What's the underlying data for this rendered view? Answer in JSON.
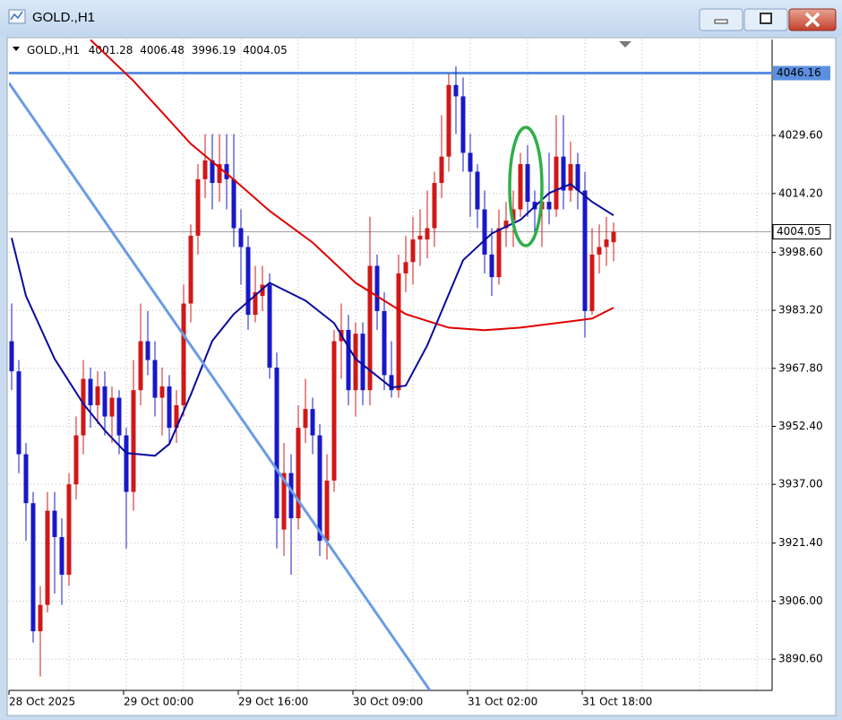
{
  "chart_data": {
    "type": "candlestick",
    "title": "GOLD.,H1",
    "categories": [
      "28 Oct 2025",
      null,
      null,
      null,
      null,
      null,
      null,
      null,
      null,
      null,
      null,
      null,
      null,
      null,
      null,
      null,
      "29 Oct 00:00",
      null,
      null,
      null,
      null,
      null,
      null,
      null,
      null,
      null,
      null,
      null,
      null,
      null,
      null,
      null,
      "29 Oct 16:00",
      null,
      null,
      null,
      null,
      null,
      null,
      null,
      null,
      null,
      null,
      null,
      null,
      null,
      null,
      null,
      "30 Oct 09:00",
      null,
      null,
      null,
      null,
      null,
      null,
      null,
      null,
      null,
      null,
      null,
      null,
      null,
      null,
      null,
      "31 Oct 02:00",
      null,
      null,
      null,
      null,
      null,
      null,
      null,
      null,
      null,
      null,
      null,
      null,
      null,
      null,
      null,
      "31 Oct 18:00",
      null,
      null,
      null,
      null
    ],
    "open": [
      3975,
      3967,
      3945,
      3932,
      3898,
      3905,
      3930,
      3923,
      3913,
      3937,
      3950,
      3965,
      3958,
      3963,
      3955,
      3960,
      3950,
      3935,
      3962,
      3975,
      3970,
      3960,
      3963,
      3952,
      3958,
      3985,
      4003,
      4018,
      4023,
      4017,
      4022,
      4018,
      4005,
      4000,
      3982,
      3987,
      3990,
      3968,
      3925,
      3940,
      3928,
      3952,
      3957,
      3950,
      3922,
      3938,
      3975,
      3978,
      3962,
      3977,
      3962,
      3995,
      3983,
      3966,
      3962,
      3993,
      3996,
      4002,
      4002,
      4005,
      4017,
      4024,
      4043,
      4040,
      4025,
      4020,
      4010,
      3998,
      3992,
      4005,
      4007,
      4010,
      4022,
      4012,
      4010,
      4012,
      4010,
      4024,
      4015,
      4022,
      4015,
      3983,
      3998,
      4000,
      4001.28
    ],
    "high": [
      3985,
      3970,
      3948,
      3935,
      3910,
      3935,
      3935,
      3928,
      3940,
      3955,
      3970,
      3968,
      3967,
      3967,
      3963,
      3962,
      3952,
      3970,
      3985,
      3983,
      3975,
      3968,
      3966,
      3962,
      3990,
      4006,
      4022,
      4030,
      4030,
      4030,
      4030,
      4030,
      4010,
      4003,
      3995,
      3995,
      3993,
      3972,
      3948,
      3945,
      3958,
      3965,
      3960,
      3953,
      3945,
      3978,
      3985,
      3982,
      3980,
      3980,
      4008,
      3998,
      3988,
      3975,
      3998,
      4003,
      4008,
      4010,
      4015,
      4020,
      4035,
      4046,
      4048,
      4045,
      4030,
      4022,
      4015,
      4005,
      4010,
      4012,
      4015,
      4025,
      4027,
      4015,
      4018,
      4025,
      4035,
      4035,
      4028,
      4025,
      4020,
      4005,
      4006,
      4008,
      4006.48
    ],
    "low": [
      3962,
      3940,
      3922,
      3895,
      3886,
      3903,
      3908,
      3905,
      3910,
      3933,
      3945,
      3952,
      3953,
      3950,
      3948,
      3945,
      3920,
      3930,
      3958,
      3966,
      3955,
      3950,
      3948,
      3948,
      3955,
      3980,
      3998,
      4013,
      4010,
      4012,
      4010,
      4000,
      3990,
      3978,
      3980,
      3983,
      3965,
      3920,
      3918,
      3913,
      3925,
      3948,
      3945,
      3918,
      3917,
      3935,
      3965,
      3958,
      3955,
      3958,
      3958,
      3978,
      3962,
      3960,
      3960,
      3988,
      3990,
      3995,
      3997,
      4000,
      4013,
      4020,
      4030,
      4020,
      4008,
      4005,
      3993,
      3987,
      3990,
      4000,
      4000,
      4008,
      4008,
      4003,
      4000,
      4006,
      4008,
      4010,
      4012,
      4010,
      3976,
      3982,
      3993,
      3995,
      3996.19
    ],
    "close": [
      3967,
      3945,
      3932,
      3898,
      3905,
      3930,
      3923,
      3913,
      3937,
      3950,
      3965,
      3958,
      3963,
      3955,
      3960,
      3950,
      3935,
      3962,
      3975,
      3970,
      3960,
      3963,
      3952,
      3958,
      3985,
      4003,
      4018,
      4023,
      4017,
      4022,
      4018,
      4005,
      4000,
      3982,
      3988,
      3990,
      3968,
      3928,
      3940,
      3928,
      3952,
      3957,
      3950,
      3922,
      3938,
      3975,
      3978,
      3962,
      3977,
      3962,
      3995,
      3983,
      3966,
      3962,
      3993,
      3996,
      4002,
      4003,
      4005,
      4017,
      4024,
      4043,
      4040,
      4025,
      4020,
      4010,
      3998,
      3992,
      4005,
      4007,
      4010,
      4022,
      4012,
      4010,
      4012,
      4010,
      4024,
      4015,
      4022,
      4015,
      3983,
      3998,
      4000,
      4002,
      4004.05
    ],
    "up_color": "#d01818",
    "down_color": "#1818c8",
    "ylim": [
      3882.3,
      4055.1
    ],
    "yticks": [
      {
        "value": 3890.6,
        "label": "3890.60"
      },
      {
        "value": 3906,
        "label": "3906.00"
      },
      {
        "value": 3921.4,
        "label": "3921.40"
      },
      {
        "value": 3937,
        "label": "3937.00"
      },
      {
        "value": 3952.4,
        "label": "3952.40"
      },
      {
        "value": 3967.8,
        "label": "3967.80"
      },
      {
        "value": 3983.2,
        "label": "3983.20"
      },
      {
        "value": 3998.6,
        "label": "3998.60"
      },
      {
        "value": 4014.2,
        "label": "4014.20"
      },
      {
        "value": 4029.6,
        "label": "4029.60"
      }
    ],
    "grid": true,
    "lines": [
      {
        "color": "#e00000",
        "x": [
          11,
          17,
          25,
          31,
          36,
          42,
          48,
          55,
          61,
          66,
          71,
          76,
          81,
          84
        ],
        "values": [
          4055.0,
          4044.1,
          4027.4,
          4017.9,
          4009.6,
          4001.2,
          3990.5,
          3982.2,
          3978.6,
          3977.9,
          3978.6,
          3979.8,
          3981.0,
          3983.9
        ]
      },
      {
        "color": "#0a0a9e",
        "x": [
          0,
          2,
          6,
          10,
          13,
          16,
          20,
          22,
          25,
          28,
          31,
          36,
          41,
          45,
          48,
          53,
          55,
          58,
          63,
          67,
          71,
          75,
          78,
          81,
          84
        ],
        "values": [
          4002.4,
          3987.0,
          3970.3,
          3958.4,
          3951.3,
          3945.3,
          3944.6,
          3947.7,
          3960.8,
          3975.1,
          3982.2,
          3990.5,
          3985.8,
          3979.8,
          3970.3,
          3962.7,
          3963.2,
          3973.9,
          3996.5,
          4003.6,
          4007.2,
          4014.3,
          4016.7,
          4012.0,
          4008.4
        ]
      },
      {
        "color": "#6b9be6",
        "x": [
          -0.4,
          58.4
        ],
        "values": [
          4043.6,
          3882.2
        ]
      }
    ],
    "levels": [
      4046.16
    ],
    "level_color": "#5b8fe0"
  }
}
